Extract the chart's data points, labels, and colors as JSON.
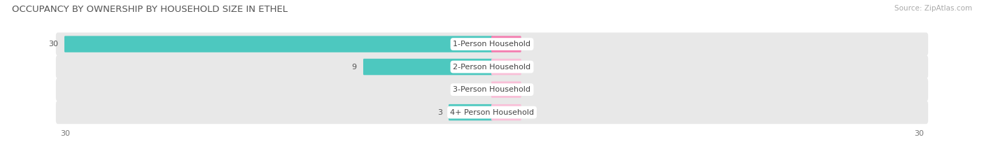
{
  "title": "OCCUPANCY BY OWNERSHIP BY HOUSEHOLD SIZE IN ETHEL",
  "source": "Source: ZipAtlas.com",
  "categories": [
    "1-Person Household",
    "2-Person Household",
    "3-Person Household",
    "4+ Person Household"
  ],
  "owner_values": [
    30,
    9,
    0,
    3
  ],
  "renter_values": [
    2,
    0,
    0,
    0
  ],
  "owner_color": "#4DC8BF",
  "renter_color": "#F47EB0",
  "renter_min_color": "#F9C0D8",
  "row_bg_color": "#E8E8E8",
  "xlim": 30,
  "min_bar_width": 2.0,
  "title_fontsize": 9.5,
  "source_fontsize": 7.5,
  "bar_label_fontsize": 8,
  "category_fontsize": 8,
  "legend_fontsize": 8,
  "axis_label_fontsize": 8,
  "figsize": [
    14.06,
    2.33
  ],
  "dpi": 100
}
